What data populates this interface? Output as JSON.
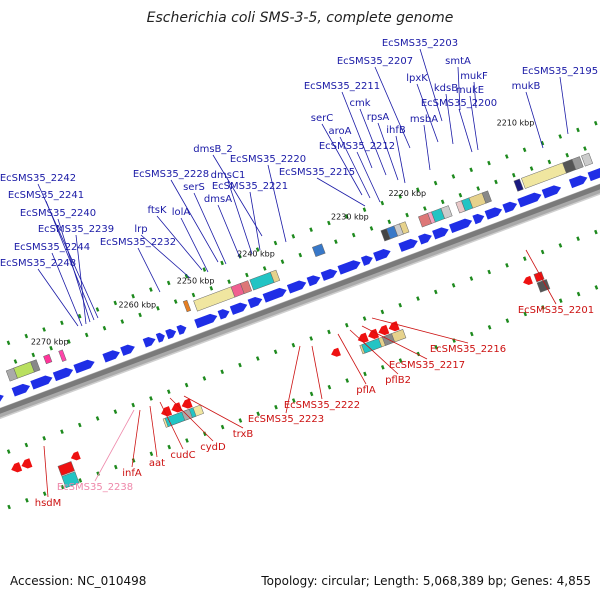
{
  "title": "Escherichia coli SMS-3-5, complete genome",
  "footer": {
    "accession": "Accession: NC_010498",
    "summary": "Topology: circular; Length: 5,068,389 bp; Genes: 4,855"
  },
  "colors": {
    "forward_label": "#1a1aa6",
    "reverse_label": "#cc1111",
    "pseudo_label": "#ee88aa",
    "forward_arrow": "#1f2ee6",
    "reverse_arrow": "#ee1111",
    "backbone": "#888888",
    "tick_mark": "#1e8a1e"
  },
  "ticks": [
    "2210 kbp",
    "2220 kbp",
    "2230 kbp",
    "2240 kbp",
    "2250 kbp",
    "2260 kbp",
    "2270 kbp"
  ],
  "forward_genes": [
    "EcSMS35_2203",
    "smtA",
    "mukF",
    "EcSMS35_2195",
    "EcSMS35_2207",
    "lpxK",
    "kdsB",
    "mukE",
    "mukB",
    "EcSMS35_2200",
    "EcSMS35_2211",
    "cmk",
    "rpsA",
    "msbA",
    "ihfB",
    "serC",
    "aroA",
    "EcSMS35_2212",
    "EcSMS35_2215",
    "dmsB_2",
    "EcSMS35_2220",
    "dmsC1",
    "EcSMS35_2228",
    "serS",
    "EcSMS35_2221",
    "dmsA",
    "ftsK",
    "lolA",
    "lrp",
    "EcSMS35_2232",
    "EcSMS35_2242",
    "EcSMS35_2241",
    "EcSMS35_2240",
    "EcSMS35_2239",
    "EcSMS35_2244",
    "EcSMS35_2248"
  ],
  "reverse_genes": [
    "EcSMS35_2201",
    "EcSMS35_2216",
    "EcSMS35_2217",
    "pflB2",
    "pflA",
    "EcSMS35_2222",
    "EcSMS35_2223",
    "trxB",
    "cydD",
    "cudC",
    "aat",
    "infA",
    "EcSMS35_2238",
    "hsdM"
  ]
}
